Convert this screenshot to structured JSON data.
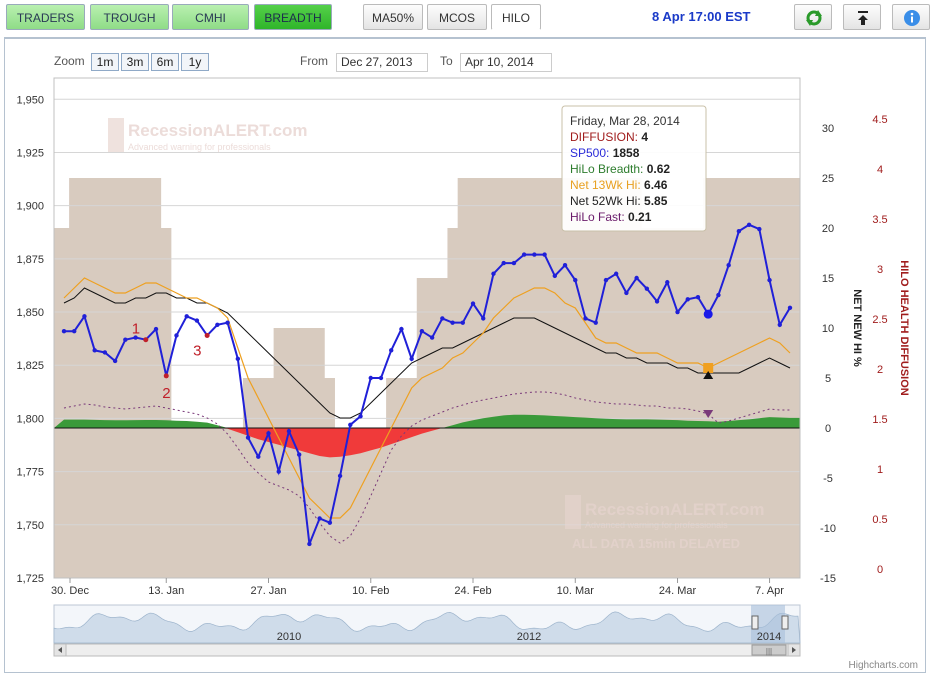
{
  "nav": {
    "tabs": [
      {
        "label": "TRADERS",
        "style": "green"
      },
      {
        "label": "TROUGH",
        "style": "green"
      },
      {
        "label": "CMHI",
        "style": "green"
      },
      {
        "label": "BREADTH",
        "style": "active"
      }
    ],
    "indicator_tabs": [
      {
        "label": "MA50%",
        "style": "gray"
      },
      {
        "label": "MCOS",
        "style": "gray"
      },
      {
        "label": "HILO",
        "style": "selected"
      }
    ],
    "datetime": "8 Apr 17:00 EST",
    "buttons": [
      {
        "icon": "refresh-icon"
      },
      {
        "icon": "download-icon"
      },
      {
        "icon": "info-icon"
      }
    ]
  },
  "range_selector": {
    "zoom_label": "Zoom",
    "zoom_buttons": [
      "1m",
      "3m",
      "6m",
      "1y"
    ],
    "from_label": "From",
    "from_value": "Dec 27, 2013",
    "to_label": "To",
    "to_value": "Apr 10, 2014"
  },
  "watermark": {
    "line1": "ALL DATA 15min DELAYED",
    "brand": "RecessionALERT.com",
    "tagline": "Advanced warning for professionals",
    "line_bottom": "ALL DATA 15min DELAYED"
  },
  "tooltip": {
    "date": "Friday, Mar 28, 2014",
    "rows": [
      {
        "label": "DIFFUSION",
        "value": "4",
        "color": "#a01c1c"
      },
      {
        "label": "SP500",
        "value": "1858",
        "color": "#2b2bd8"
      },
      {
        "label": "HiLo Breadth",
        "value": "0.62",
        "color": "#2e7d2e"
      },
      {
        "label": "Net 13Wk Hi",
        "value": "6.46",
        "color": "#e8a020"
      },
      {
        "label": "Net 52Wk Hi",
        "value": "5.85",
        "color": "#222222"
      },
      {
        "label": "HiLo Fast",
        "value": "0.21",
        "color": "#6a1a6a"
      }
    ]
  },
  "navigator": {
    "year_labels": [
      "2010",
      "2012",
      "2014"
    ],
    "scroll_grip": "|||"
  },
  "credits": "Highcharts.com",
  "chart_data": {
    "type": "line",
    "x_axis": {
      "tick_labels": [
        "30. Dec",
        "13. Jan",
        "27. Jan",
        "10. Feb",
        "24. Feb",
        "10. Mar",
        "24. Mar",
        "7. Apr"
      ]
    },
    "y_axis_left": {
      "label": "",
      "ticks": [
        "1,950",
        "1,925",
        "1,900",
        "1,875",
        "1,850",
        "1,825",
        "1,800",
        "1,775",
        "1,750",
        "1,725"
      ],
      "range": [
        1725,
        1960
      ]
    },
    "y_axis_right1": {
      "label": "NET NEW HI %",
      "ticks": [
        "30",
        "25",
        "20",
        "15",
        "10",
        "5",
        "0",
        "-5",
        "-10",
        "-15"
      ],
      "range": [
        -15,
        30
      ]
    },
    "y_axis_right2": {
      "label": "HILO HEALTH DIFFUSION",
      "ticks": [
        "4.5",
        "4",
        "3.5",
        "3",
        "2.5",
        "2",
        "1.5",
        "1",
        "0.5",
        "0"
      ],
      "range": [
        0,
        4.5
      ]
    },
    "series": [
      {
        "name": "SP500",
        "color": "#2020d8",
        "values": [
          1841,
          1841,
          1848,
          1832,
          1831,
          1827,
          1837,
          1838,
          1837,
          1842,
          1820,
          1839,
          1848,
          1846,
          1839,
          1844,
          1845,
          1828,
          1791,
          1782,
          1793,
          1775,
          1794,
          1783,
          1741,
          1753,
          1751,
          1773,
          1797,
          1801,
          1819,
          1819,
          1832,
          1842,
          1828,
          1841,
          1838,
          1847,
          1845,
          1845,
          1854,
          1847,
          1868,
          1873,
          1873,
          1877,
          1877,
          1877,
          1867,
          1872,
          1865,
          1847,
          1845,
          1865,
          1868,
          1859,
          1866,
          1861,
          1855,
          1864,
          1850,
          1856,
          1857,
          1849,
          1858,
          1872,
          1888,
          1891,
          1889,
          1865,
          1844,
          1852
        ]
      },
      {
        "name": "Net 13Wk Hi",
        "color": "#eea020",
        "values": [
          13,
          14,
          15,
          14.5,
          14,
          13.5,
          13.5,
          14,
          14.5,
          14.5,
          14,
          13.5,
          13,
          13,
          12.5,
          12,
          11,
          8,
          5,
          3,
          1,
          -1,
          -3,
          -5,
          -7,
          -8,
          -9,
          -9,
          -8,
          -6,
          -4,
          -2,
          0,
          2,
          4,
          5,
          5.5,
          6,
          7,
          7.5,
          8.5,
          9.5,
          11,
          12,
          13,
          13.5,
          14,
          14,
          13.5,
          12.5,
          12,
          10.5,
          9,
          8.5,
          8.5,
          8,
          7.5,
          7.5,
          7.5,
          7,
          6.5,
          6.5,
          6.5,
          6,
          6.5,
          7,
          7.5,
          8,
          8.5,
          9,
          8.5,
          7.5
        ]
      },
      {
        "name": "Net 52Wk Hi",
        "color": "#111111",
        "values": [
          12.5,
          13,
          14,
          13.5,
          13,
          12.5,
          12.5,
          13,
          13,
          13.5,
          13.5,
          13,
          13,
          12.5,
          12.5,
          12,
          11.5,
          10.5,
          9.5,
          8.5,
          7.5,
          6.5,
          5.5,
          4.5,
          3.5,
          2.5,
          1.5,
          1,
          1,
          1.5,
          2.5,
          3.5,
          4.5,
          5.5,
          6.5,
          7,
          7.5,
          8,
          8,
          8.5,
          9,
          9.5,
          10,
          10.5,
          11,
          11,
          11,
          10.5,
          10,
          9.5,
          9,
          8.5,
          8,
          7.5,
          7.5,
          7,
          7,
          6.5,
          6.5,
          6.5,
          6,
          6,
          5.5,
          5.5,
          5.5,
          5.5,
          5.5,
          6,
          6.5,
          7,
          6.5,
          6
        ]
      },
      {
        "name": "HiLo Fast",
        "color": "#7a3a7a",
        "values": [
          1.7,
          1.72,
          1.74,
          1.73,
          1.71,
          1.7,
          1.69,
          1.7,
          1.71,
          1.72,
          1.7,
          1.68,
          1.66,
          1.64,
          1.6,
          1.54,
          1.44,
          1.3,
          1.15,
          1.05,
          0.96,
          0.92,
          0.88,
          0.82,
          0.7,
          0.55,
          0.42,
          0.35,
          0.42,
          0.6,
          0.82,
          1.05,
          1.28,
          1.42,
          1.52,
          1.58,
          1.62,
          1.66,
          1.7,
          1.73,
          1.76,
          1.78,
          1.8,
          1.82,
          1.84,
          1.85,
          1.86,
          1.86,
          1.85,
          1.83,
          1.8,
          1.78,
          1.76,
          1.75,
          1.74,
          1.74,
          1.73,
          1.72,
          1.72,
          1.7,
          1.7,
          1.69,
          1.67,
          1.64,
          1.55,
          1.57,
          1.6,
          1.63,
          1.66,
          1.69,
          1.68,
          1.68
        ]
      },
      {
        "name": "HiLo Breadth",
        "type": "area",
        "values": [
          0.6,
          0.6,
          0.6,
          0.58,
          0.56,
          0.55,
          0.55,
          0.56,
          0.57,
          0.57,
          0.55,
          0.52,
          0.5,
          0.45,
          0.38,
          0.2,
          -0.05,
          -0.3,
          -0.55,
          -0.8,
          -1.0,
          -1.2,
          -1.4,
          -1.6,
          -1.8,
          -2.0,
          -2.1,
          -2.05,
          -1.95,
          -1.8,
          -1.6,
          -1.4,
          -1.15,
          -0.9,
          -0.65,
          -0.4,
          -0.2,
          0,
          0.2,
          0.4,
          0.55,
          0.7,
          0.8,
          0.9,
          0.95,
          0.95,
          0.93,
          0.9,
          0.86,
          0.82,
          0.78,
          0.74,
          0.7,
          0.66,
          0.63,
          0.62,
          0.62,
          0.62,
          0.6,
          0.58,
          0.56,
          0.52,
          0.5,
          0.48,
          0.45,
          0.5,
          0.56,
          0.62,
          0.7,
          0.78,
          0.75,
          0.72
        ]
      },
      {
        "name": "DIFFUSION",
        "type": "area",
        "color": "#d8cbbf",
        "values": [
          3.5,
          4,
          4,
          4,
          4,
          4,
          4,
          4,
          4,
          4,
          3.5,
          1.5,
          1.5,
          1.5,
          1.5,
          1.5,
          1.5,
          1.5,
          2,
          2,
          2,
          2.5,
          2.5,
          2.5,
          2.5,
          2.5,
          2,
          1.5,
          1.5,
          1.5,
          1.5,
          1.5,
          2,
          2,
          2,
          3,
          3,
          3,
          3.5,
          4,
          4,
          4,
          4,
          4,
          4,
          4,
          4,
          4,
          4,
          4,
          4,
          4,
          4,
          4,
          4,
          4,
          4,
          3.5,
          3.5,
          3.5,
          3.5,
          3.5,
          3.5,
          4,
          4,
          4,
          4,
          4,
          4,
          4,
          4,
          4
        ]
      }
    ],
    "markers": [
      {
        "label": "1",
        "color": "#c0202a"
      },
      {
        "label": "2",
        "color": "#c0202a"
      },
      {
        "label": "3",
        "color": "#c0202a"
      }
    ]
  }
}
